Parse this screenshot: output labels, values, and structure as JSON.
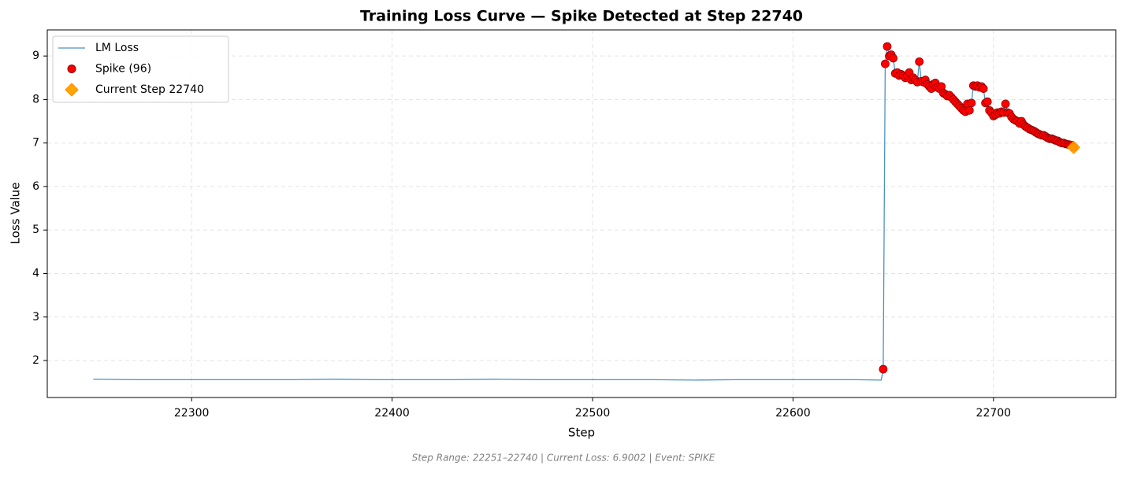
{
  "chart_data": {
    "type": "line",
    "title": "Training Loss Curve — Spike Detected at Step 22740",
    "xlabel": "Step",
    "ylabel": "Loss Value",
    "footnote": "Step Range: 22251–22740 | Current Loss: 6.9002 | Event: SPIKE",
    "xlim": [
      22228,
      22761
    ],
    "ylim": [
      1.15,
      9.6
    ],
    "xticks": [
      22300,
      22400,
      22500,
      22600,
      22700
    ],
    "yticks": [
      2,
      3,
      4,
      5,
      6,
      7,
      8,
      9
    ],
    "grid": true,
    "legend": "upper left",
    "series": [
      {
        "name": "LM Loss",
        "type": "line",
        "color": "#1f77b4",
        "x": [
          22251,
          22271,
          22291,
          22311,
          22331,
          22351,
          22371,
          22391,
          22411,
          22431,
          22451,
          22471,
          22491,
          22511,
          22531,
          22551,
          22571,
          22591,
          22611,
          22631,
          22644,
          22645,
          22646,
          22647,
          22648,
          22649,
          22650,
          22651,
          22652,
          22653,
          22654,
          22655,
          22656,
          22657,
          22658,
          22659,
          22660,
          22661,
          22662,
          22663,
          22664,
          22665,
          22666,
          22667,
          22668,
          22669,
          22670,
          22671,
          22672,
          22673,
          22674,
          22675,
          22676,
          22677,
          22678,
          22679,
          22680,
          22681,
          22682,
          22683,
          22684,
          22685,
          22686,
          22687,
          22688,
          22689,
          22690,
          22691,
          22692,
          22693,
          22694,
          22695,
          22696,
          22697,
          22698,
          22699,
          22700,
          22701,
          22702,
          22703,
          22704,
          22705,
          22706,
          22707,
          22708,
          22709,
          22710,
          22711,
          22712,
          22713,
          22714,
          22715,
          22716,
          22717,
          22718,
          22719,
          22720,
          22721,
          22722,
          22723,
          22724,
          22725,
          22726,
          22727,
          22728,
          22729,
          22730,
          22731,
          22732,
          22733,
          22734,
          22735,
          22736,
          22737,
          22738,
          22739,
          22740
        ],
        "values": [
          1.57,
          1.56,
          1.56,
          1.56,
          1.56,
          1.56,
          1.57,
          1.56,
          1.56,
          1.56,
          1.57,
          1.56,
          1.56,
          1.56,
          1.56,
          1.55,
          1.56,
          1.56,
          1.56,
          1.56,
          1.55,
          1.8,
          8.82,
          9.22,
          9.0,
          9.03,
          8.95,
          8.6,
          8.62,
          8.55,
          8.58,
          8.55,
          8.5,
          8.55,
          8.62,
          8.45,
          8.5,
          8.45,
          8.4,
          8.87,
          8.42,
          8.4,
          8.45,
          8.35,
          8.3,
          8.25,
          8.35,
          8.38,
          8.28,
          8.25,
          8.3,
          8.15,
          8.12,
          8.08,
          8.1,
          8.05,
          8.0,
          7.95,
          7.9,
          7.85,
          7.8,
          7.75,
          7.72,
          7.9,
          7.75,
          7.92,
          8.32,
          8.3,
          8.32,
          8.28,
          8.3,
          8.25,
          7.92,
          7.95,
          7.75,
          7.7,
          7.62,
          7.65,
          7.7,
          7.68,
          7.72,
          7.7,
          7.9,
          7.7,
          7.68,
          7.6,
          7.55,
          7.52,
          7.5,
          7.45,
          7.5,
          7.42,
          7.38,
          7.35,
          7.32,
          7.3,
          7.28,
          7.25,
          7.22,
          7.2,
          7.18,
          7.18,
          7.15,
          7.12,
          7.1,
          7.1,
          7.08,
          7.06,
          7.05,
          7.02,
          7.0,
          7.0,
          6.98,
          6.97,
          6.96,
          6.95,
          6.9
        ]
      },
      {
        "name": "Spike (96)",
        "type": "scatter",
        "marker": "circle",
        "color": "#ff0000",
        "edgecolor": "#8b0000",
        "x": [
          22645,
          22646,
          22647,
          22648,
          22649,
          22650,
          22651,
          22652,
          22653,
          22654,
          22655,
          22656,
          22657,
          22658,
          22659,
          22660,
          22661,
          22662,
          22663,
          22664,
          22665,
          22666,
          22667,
          22668,
          22669,
          22670,
          22671,
          22672,
          22673,
          22674,
          22675,
          22676,
          22677,
          22678,
          22679,
          22680,
          22681,
          22682,
          22683,
          22684,
          22685,
          22686,
          22687,
          22688,
          22689,
          22690,
          22691,
          22692,
          22693,
          22694,
          22695,
          22696,
          22697,
          22698,
          22699,
          22700,
          22701,
          22702,
          22703,
          22704,
          22705,
          22706,
          22707,
          22708,
          22709,
          22710,
          22711,
          22712,
          22713,
          22714,
          22715,
          22716,
          22717,
          22718,
          22719,
          22720,
          22721,
          22722,
          22723,
          22724,
          22725,
          22726,
          22727,
          22728,
          22729,
          22730,
          22731,
          22732,
          22733,
          22734,
          22735,
          22736,
          22737,
          22738,
          22739,
          22740
        ],
        "values": [
          1.8,
          8.82,
          9.22,
          9.0,
          9.03,
          8.95,
          8.6,
          8.62,
          8.55,
          8.58,
          8.55,
          8.5,
          8.55,
          8.62,
          8.45,
          8.5,
          8.45,
          8.4,
          8.87,
          8.42,
          8.4,
          8.45,
          8.35,
          8.3,
          8.25,
          8.35,
          8.38,
          8.28,
          8.25,
          8.3,
          8.15,
          8.12,
          8.08,
          8.1,
          8.05,
          8.0,
          7.95,
          7.9,
          7.85,
          7.8,
          7.75,
          7.72,
          7.9,
          7.75,
          7.92,
          8.32,
          8.3,
          8.32,
          8.28,
          8.3,
          8.25,
          7.92,
          7.95,
          7.75,
          7.7,
          7.62,
          7.65,
          7.7,
          7.68,
          7.72,
          7.7,
          7.9,
          7.7,
          7.68,
          7.6,
          7.55,
          7.52,
          7.5,
          7.45,
          7.5,
          7.42,
          7.38,
          7.35,
          7.32,
          7.3,
          7.28,
          7.25,
          7.22,
          7.2,
          7.18,
          7.18,
          7.15,
          7.12,
          7.1,
          7.1,
          7.08,
          7.06,
          7.05,
          7.02,
          7.0,
          7.0,
          6.98,
          6.97,
          6.96,
          6.95,
          6.9
        ]
      },
      {
        "name": "Current Step 22740",
        "type": "scatter",
        "marker": "diamond",
        "color": "#ffa500",
        "edgecolor": "#ff8c00",
        "x": [
          22740
        ],
        "values": [
          6.9002
        ]
      }
    ]
  }
}
